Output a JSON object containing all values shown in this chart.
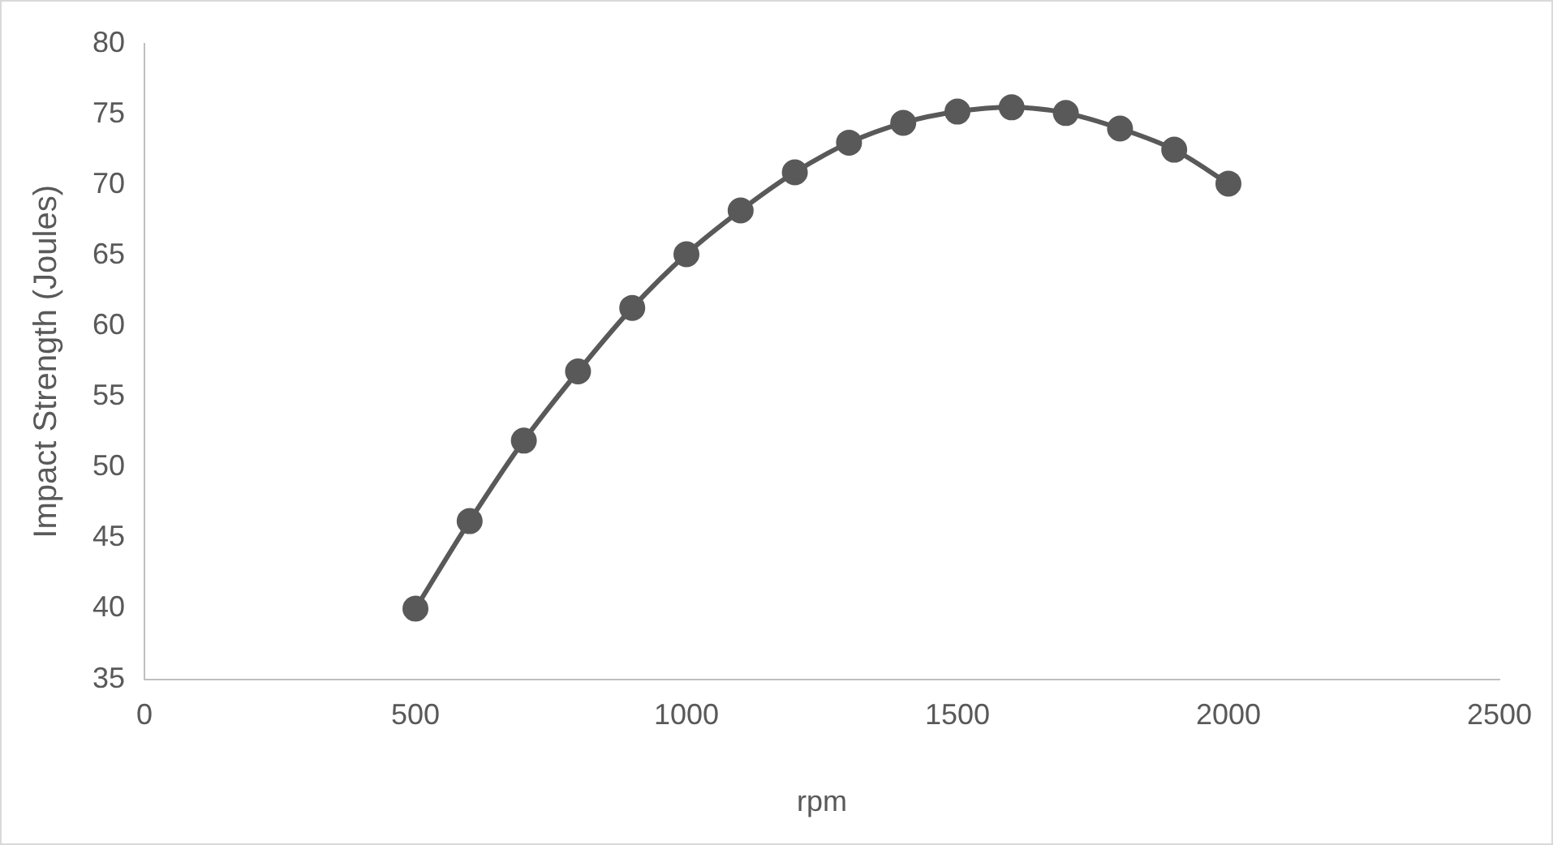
{
  "chart_data": {
    "type": "line",
    "xlabel": "rpm",
    "ylabel": "Impact Strength (Joules)",
    "x": [
      500,
      600,
      700,
      800,
      900,
      1000,
      1100,
      1200,
      1300,
      1400,
      1500,
      1600,
      1700,
      1800,
      1900,
      2000
    ],
    "series": [
      {
        "color": "#595959",
        "values": [
          40,
          46.2,
          51.9,
          56.8,
          61.3,
          65.1,
          68.2,
          70.9,
          73.0,
          74.4,
          75.2,
          75.5,
          75.1,
          74.0,
          72.5,
          70.1
        ]
      }
    ],
    "xlim": [
      0,
      2500
    ],
    "xticks": [
      0,
      500,
      1000,
      1500,
      2000,
      2500
    ],
    "ylim": [
      35,
      80
    ],
    "yticks": [
      35,
      40,
      45,
      50,
      55,
      60,
      65,
      70,
      75,
      80
    ],
    "grid": false,
    "legend": false,
    "marker": "circle",
    "line_style": "solid"
  }
}
